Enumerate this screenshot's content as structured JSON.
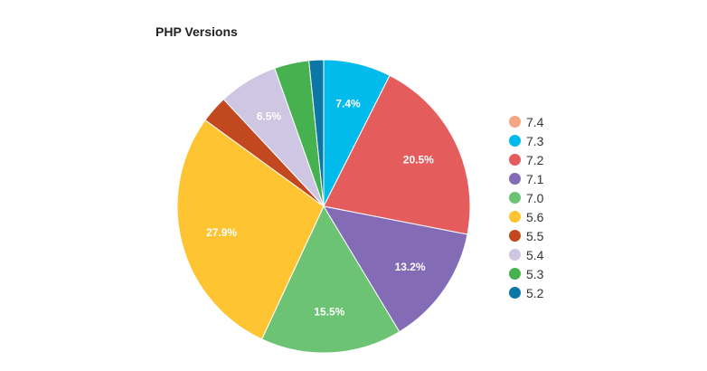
{
  "chart_data": {
    "type": "pie",
    "title": "PHP Versions",
    "legend_position": "right",
    "slices": [
      {
        "label": "7.4",
        "value": 0,
        "color": "#f4a582",
        "data_label": ""
      },
      {
        "label": "7.3",
        "value": 7.4,
        "color": "#00bbeb",
        "data_label": "7.4%"
      },
      {
        "label": "7.2",
        "value": 20.5,
        "color": "#e55c5c",
        "data_label": "20.5%"
      },
      {
        "label": "7.1",
        "value": 13.2,
        "color": "#836cb5",
        "data_label": "13.2%"
      },
      {
        "label": "7.0",
        "value": 15.5,
        "color": "#6cc374",
        "data_label": "15.5%"
      },
      {
        "label": "5.6",
        "value": 27.9,
        "color": "#ffc431",
        "data_label": "27.9%"
      },
      {
        "label": "5.5",
        "value": 3.0,
        "color": "#c1481f",
        "data_label": ""
      },
      {
        "label": "5.4",
        "value": 6.5,
        "color": "#cec6e3",
        "data_label": "6.5%"
      },
      {
        "label": "5.3",
        "value": 3.8,
        "color": "#46b24f",
        "data_label": ""
      },
      {
        "label": "5.2",
        "value": 1.6,
        "color": "#0b77a6",
        "data_label": ""
      }
    ]
  }
}
